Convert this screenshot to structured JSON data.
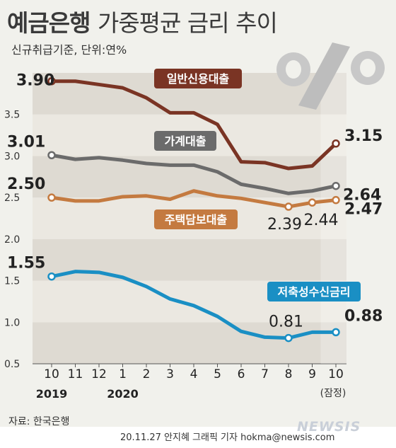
{
  "header": {
    "title_main": "예금은행",
    "title_sub": "가중평균 금리 추이",
    "unit": "신규취급기준, 단위:연%"
  },
  "footer": {
    "source": "자료: 한국은행",
    "credit": "20.11.27 안지혜 그래픽 기자 hokma@newsis.com",
    "logo": "NEWSIS"
  },
  "colors": {
    "general_loan": "#7a3424",
    "household_loan": "#6b6b6b",
    "mortgage_loan": "#c47a40",
    "savings": "#1a8fc4",
    "background": "#f1f1ec"
  },
  "decoration_icon": "percent-sign-icon",
  "chart_data": {
    "type": "line",
    "categories": [
      "10",
      "11",
      "12",
      "1",
      "2",
      "3",
      "4",
      "5",
      "6",
      "7",
      "8",
      "9",
      "10"
    ],
    "year_labels": [
      {
        "label": "2019",
        "at": "10"
      },
      {
        "label": "2020",
        "at": "1"
      }
    ],
    "last_point_note": "(잠정)",
    "ylim": [
      0.5,
      4.0
    ],
    "yticks": [
      "3.5",
      "3.0",
      "2.5",
      "2.0",
      "1.5",
      "1.0",
      "0.5"
    ],
    "grid": "alternating horizontal bands",
    "series": [
      {
        "name": "일반신용대출",
        "values": [
          3.9,
          3.9,
          3.86,
          3.82,
          3.7,
          3.52,
          3.52,
          3.38,
          2.93,
          2.92,
          2.85,
          2.88,
          3.15
        ],
        "labels": [
          {
            "index": 0,
            "text": "3.90"
          },
          {
            "index": 12,
            "text": "3.15"
          }
        ]
      },
      {
        "name": "가계대출",
        "values": [
          3.01,
          2.96,
          2.98,
          2.95,
          2.91,
          2.89,
          2.89,
          2.81,
          2.66,
          2.61,
          2.55,
          2.58,
          2.64
        ],
        "labels": [
          {
            "index": 0,
            "text": "3.01"
          },
          {
            "index": 12,
            "text": "2.64"
          }
        ]
      },
      {
        "name": "주택담보대출",
        "values": [
          2.5,
          2.46,
          2.46,
          2.51,
          2.52,
          2.48,
          2.58,
          2.52,
          2.49,
          2.44,
          2.39,
          2.44,
          2.47
        ],
        "labels": [
          {
            "index": 0,
            "text": "2.50"
          },
          {
            "index": 10,
            "text": "2.39"
          },
          {
            "index": 11,
            "text": "2.44"
          },
          {
            "index": 12,
            "text": "2.47"
          }
        ]
      },
      {
        "name": "저축성수신금리",
        "values": [
          1.55,
          1.61,
          1.6,
          1.54,
          1.43,
          1.28,
          1.2,
          1.07,
          0.89,
          0.82,
          0.81,
          0.88,
          0.88
        ],
        "labels": [
          {
            "index": 0,
            "text": "1.55"
          },
          {
            "index": 10,
            "text": "0.81"
          },
          {
            "index": 12,
            "text": "0.88"
          }
        ]
      }
    ]
  }
}
